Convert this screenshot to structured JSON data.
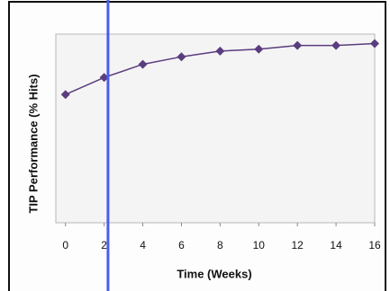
{
  "chart_data": {
    "type": "line",
    "x_label": "Time (Weeks)",
    "y_label": "TIP Performance (% Hits)",
    "x": [
      0,
      2,
      4,
      6,
      8,
      10,
      12,
      14,
      16
    ],
    "series": [
      {
        "color": "#5a3d7e",
        "values": [
          68,
          77,
          84,
          88,
          91,
          92,
          94,
          94,
          95
        ]
      }
    ],
    "xlim": [
      -0.5,
      16
    ],
    "xticks": [
      0,
      2,
      4,
      6,
      8,
      10,
      12,
      14,
      16
    ],
    "ylim": [
      0,
      100
    ],
    "vline": {
      "x": 2.2,
      "color": "#4a5cf0"
    }
  }
}
